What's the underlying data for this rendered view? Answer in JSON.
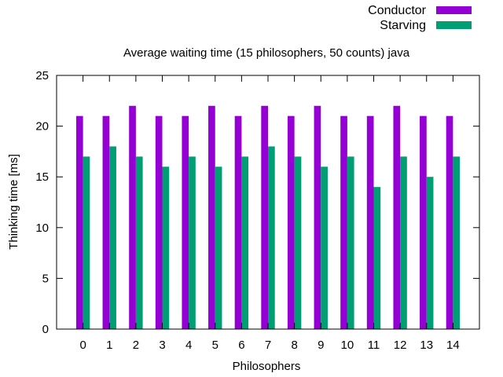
{
  "chart_data": {
    "type": "bar",
    "title": "Average waiting time (15 philosophers, 50 counts) java",
    "xlabel": "Philosophers",
    "ylabel": "Thinking time [ms]",
    "ylim": [
      0,
      25
    ],
    "yticks": [
      "0",
      "5",
      "10",
      "15",
      "20",
      "25"
    ],
    "categories": [
      "0",
      "1",
      "2",
      "3",
      "4",
      "5",
      "6",
      "7",
      "8",
      "9",
      "10",
      "11",
      "12",
      "13",
      "14"
    ],
    "legend_position": "top-right",
    "grid": false,
    "series": [
      {
        "name": "Conductor",
        "color": "#9400d3",
        "values": [
          21,
          21,
          22,
          21,
          21,
          22,
          21,
          22,
          21,
          22,
          21,
          21,
          22,
          21,
          21
        ]
      },
      {
        "name": "Starving",
        "color": "#009e73",
        "values": [
          17,
          18,
          17,
          16,
          17,
          16,
          17,
          18,
          17,
          16,
          17,
          14,
          17,
          15,
          17
        ]
      }
    ]
  }
}
